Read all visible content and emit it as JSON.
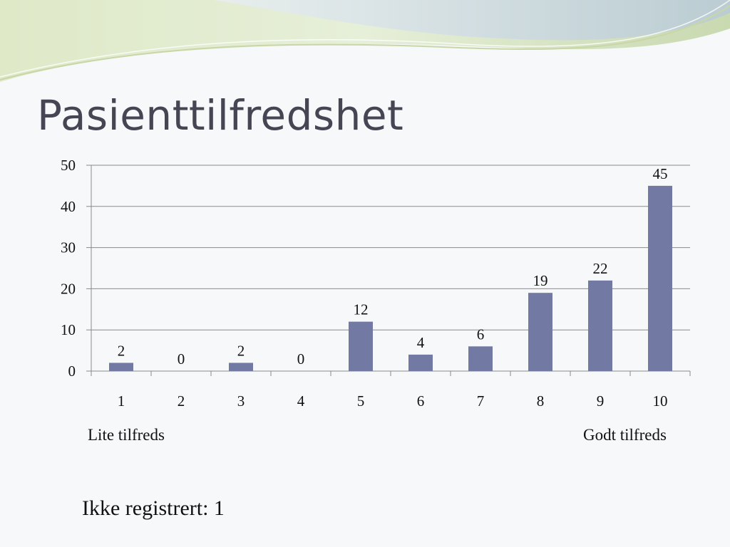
{
  "slide": {
    "title": "Pasienttilfredshet",
    "left_label": "Lite tilfreds",
    "right_label": "Godt tilfreds",
    "note": "Ikke registrert: 1"
  },
  "chart_data": {
    "type": "bar",
    "categories": [
      "1",
      "2",
      "3",
      "4",
      "5",
      "6",
      "7",
      "8",
      "9",
      "10"
    ],
    "values": [
      2,
      0,
      2,
      0,
      12,
      4,
      6,
      19,
      22,
      45
    ],
    "ylim": [
      0,
      50
    ],
    "yticks": [
      0,
      10,
      20,
      30,
      40,
      50
    ],
    "grid": true,
    "legend": false,
    "bar_color": "#7279a2"
  }
}
